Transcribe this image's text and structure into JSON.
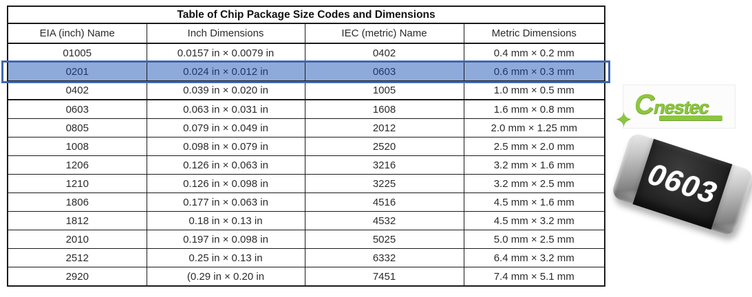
{
  "table": {
    "title": "Table of Chip Package Size Codes and Dimensions",
    "columns": [
      "EIA (inch) Name",
      "Inch Dimensions",
      "IEC (metric) Name",
      "Metric Dimensions"
    ],
    "rows": [
      [
        "01005",
        "0.0157 in × 0.0079 in",
        "0402",
        "0.4 mm × 0.2 mm"
      ],
      [
        "0201",
        "0.024 in × 0.012 in",
        "0603",
        "0.6 mm × 0.3 mm"
      ],
      [
        "0402",
        "0.039 in × 0.020 in",
        "1005",
        "1.0 mm × 0.5 mm"
      ],
      [
        "0603",
        "0.063 in × 0.031 in",
        "1608",
        "1.6 mm × 0.8 mm"
      ],
      [
        "0805",
        "0.079 in × 0.049 in",
        "2012",
        "2.0 mm × 1.25 mm"
      ],
      [
        "1008",
        "0.098 in × 0.079 in",
        "2520",
        "2.5 mm × 2.0 mm"
      ],
      [
        "1206",
        "0.126 in × 0.063 in",
        "3216",
        "3.2 mm × 1.6 mm"
      ],
      [
        "1210",
        "0.126 in × 0.098 in",
        "3225",
        "3.2 mm × 2.5 mm"
      ],
      [
        "1806",
        "0.177 in × 0.063 in",
        "4516",
        "4.5 mm × 1.6 mm"
      ],
      [
        "1812",
        "0.18 in × 0.13 in",
        "4532",
        "4.5 mm × 3.2 mm"
      ],
      [
        "2010",
        "0.197 in × 0.098 in",
        "5025",
        "5.0 mm × 2.5 mm"
      ],
      [
        "2512",
        "0.25 in × 0.13 in",
        "6332",
        "6.4 mm × 3.2 mm"
      ],
      [
        "2920",
        "(0.29 in × 0.20 in",
        "7451",
        "7.4 mm × 5.1 mm"
      ]
    ],
    "highlighted_row_index": 1,
    "thick_border_below_rows": [
      2
    ]
  },
  "logo": {
    "wordmark": "Cnestec",
    "sparkle_glyph": "✦"
  },
  "chip_photo": {
    "label": "0603"
  },
  "colors": {
    "highlight-fill": "#8EAADB",
    "highlight-border": "#3F66B0",
    "highlight-text": "#1F3864",
    "logo-green": "#8CC63F",
    "chip-body": "#262626",
    "chip-cap": "#b5b5b5",
    "chip-label": "#ffffff",
    "table-border": "#1a1a1a"
  }
}
